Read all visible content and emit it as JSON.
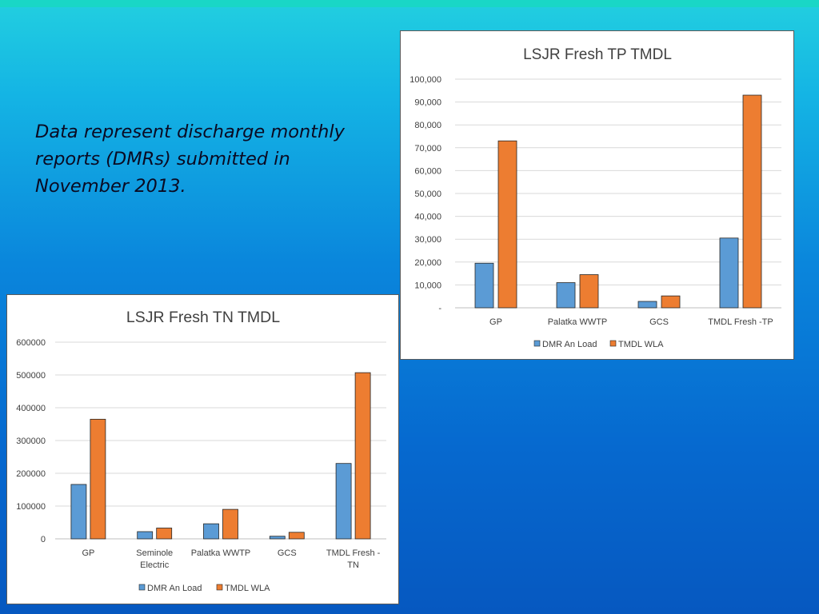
{
  "slide": {
    "caption": "Data represent discharge monthly\nreports (DMRs) submitted in\nNovember 2013."
  },
  "colors": {
    "series_blue": "#5b9bd5",
    "series_orange": "#ed7d31"
  },
  "chart_data": [
    {
      "type": "bar",
      "title": "LSJR Fresh TP TMDL",
      "categories": [
        "GP",
        "Palatka WWTP",
        "GCS",
        "TMDL Fresh -TP"
      ],
      "series": [
        {
          "name": "DMR An Load",
          "values": [
            19500,
            11000,
            2800,
            30500
          ]
        },
        {
          "name": "TMDL WLA",
          "values": [
            73000,
            14500,
            5200,
            93000
          ]
        }
      ],
      "ylim": [
        0,
        100000
      ],
      "yticks": [
        "-",
        "10,000",
        "20,000",
        "30,000",
        "40,000",
        "50,000",
        "60,000",
        "70,000",
        "80,000",
        "90,000",
        "100,000"
      ],
      "xlabel": "",
      "ylabel": "",
      "grid": true,
      "legend": "bottom"
    },
    {
      "type": "bar",
      "title": "LSJR Fresh TN TMDL",
      "categories": [
        "GP",
        "Seminole Electric",
        "Palatka WWTP",
        "GCS",
        "TMDL Fresh - TN"
      ],
      "series": [
        {
          "name": "DMR An Load",
          "values": [
            166000,
            22000,
            46000,
            8000,
            230000
          ]
        },
        {
          "name": "TMDL WLA",
          "values": [
            365000,
            33000,
            90000,
            20000,
            507000
          ]
        }
      ],
      "ylim": [
        0,
        600000
      ],
      "yticks": [
        "0",
        "100000",
        "200000",
        "300000",
        "400000",
        "500000",
        "600000"
      ],
      "xlabel": "",
      "ylabel": "",
      "grid": true,
      "legend": "bottom"
    }
  ]
}
